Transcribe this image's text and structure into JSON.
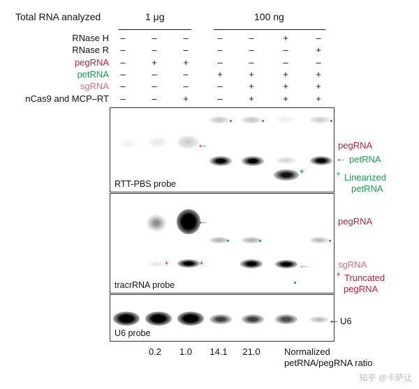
{
  "header": {
    "total_rna_label": "Total RNA analyzed",
    "group1_label": "1 μg",
    "group2_label": "100 ng"
  },
  "conditions": [
    {
      "label": "RNase H",
      "color": "#111111",
      "values": [
        "–",
        "–",
        "–",
        "–",
        "–",
        "+",
        "–"
      ]
    },
    {
      "label": "RNase R",
      "color": "#111111",
      "values": [
        "–",
        "–",
        "–",
        "–",
        "–",
        "–",
        "+"
      ]
    },
    {
      "label": "pegRNA",
      "color": "#b5243a",
      "values": [
        "–",
        "+",
        "+",
        "–",
        "–",
        "–",
        "–"
      ]
    },
    {
      "label": "petRNA",
      "color": "#1a9a4a",
      "values": [
        "–",
        "–",
        "–",
        "+",
        "+",
        "+",
        "+"
      ]
    },
    {
      "label": "sgRNA",
      "color": "#d9707a",
      "values": [
        "–",
        "–",
        "–",
        "–",
        "+",
        "+",
        "+"
      ]
    },
    {
      "label": "nCas9 and MCP–RT",
      "color": "#111111",
      "values": [
        "–",
        "–",
        "+",
        "–",
        "+",
        "+",
        "+"
      ]
    }
  ],
  "panels": {
    "rtt": {
      "label": "RTT-PBS probe"
    },
    "tracr": {
      "label": "tracrRNA probe"
    },
    "u6": {
      "label": "U6 probe"
    }
  },
  "annotations": {
    "rtt_peg": "pegRNA",
    "rtt_pet": "petRNA",
    "rtt_lin_star": "*",
    "rtt_lin1": "Linearized",
    "rtt_lin2": "petRNA",
    "tr_peg": "pegRNA",
    "tr_sg": "sgRNA",
    "tr_trunc_star": "*",
    "tr_trunc1": "Truncated",
    "tr_trunc2": "pegRNA",
    "u6": "U6",
    "star_marker": "*"
  },
  "ratio": {
    "values": [
      "0.2",
      "1.0",
      "14.1",
      "21.0"
    ],
    "label_line1": "Normalized",
    "label_line2": "petRNA/pegRNA ratio"
  },
  "colors": {
    "peg_red": "#b5243a",
    "pet_green": "#1a9a4a",
    "sg_pink": "#d9707a"
  },
  "watermark": "知乎 @卡萨让"
}
